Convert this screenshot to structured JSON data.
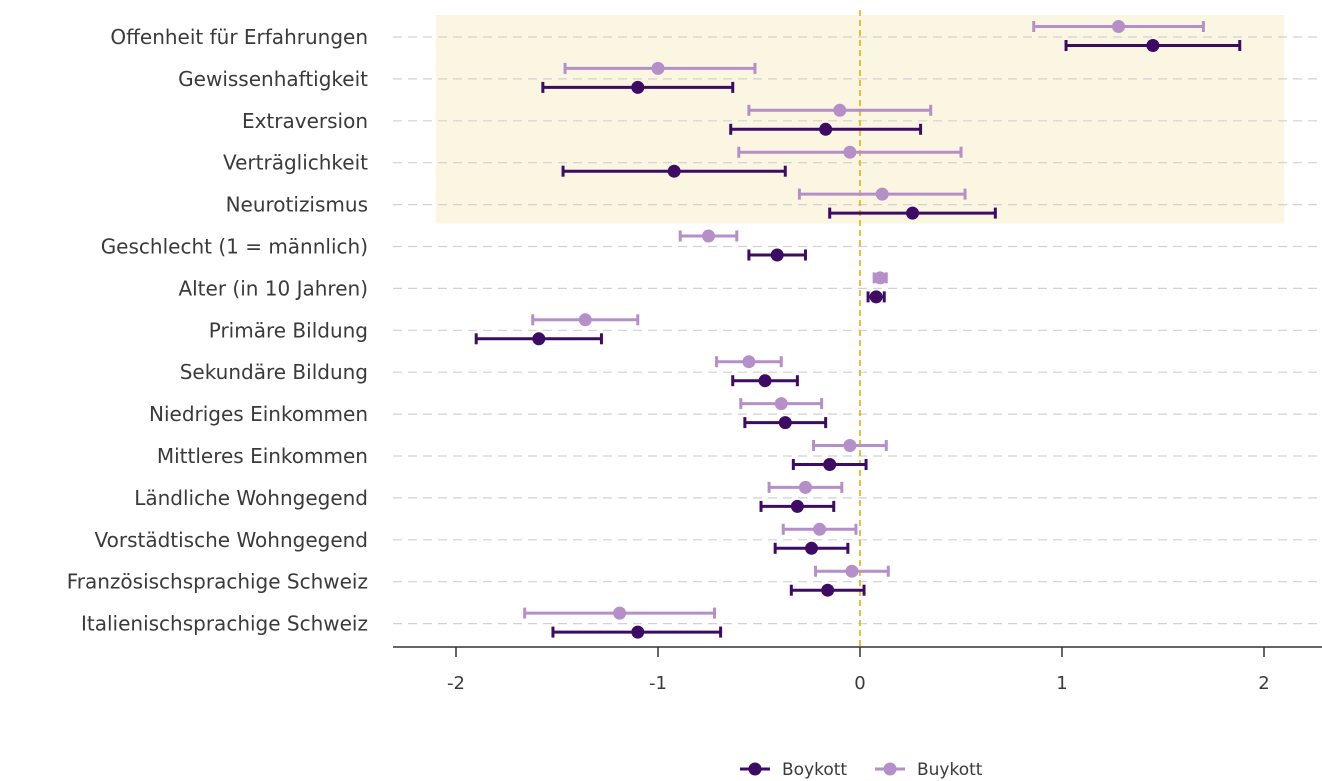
{
  "chart_data": {
    "type": "scatter",
    "subtype": "forest-plot-with-confidence-intervals",
    "title": "",
    "xlabel": "",
    "ylabel": "",
    "xlim": [
      -2.3,
      2.28
    ],
    "xticks": [
      -2,
      -1,
      0,
      1,
      2
    ],
    "xtick_labels": [
      "-2",
      "-1",
      "0",
      "1",
      "2"
    ],
    "reference_line": {
      "x": 0,
      "color": "#e8b923",
      "style": "dashed"
    },
    "highlight_region": {
      "x_from": -2.1,
      "x_to": 2.1,
      "categories_from": "Offenheit für Erfahrungen",
      "categories_to": "Neurotizismus",
      "color": "#faf6e2"
    },
    "grid": {
      "horizontal": true,
      "style": "dashed",
      "color": "#d2d2d2"
    },
    "legend": {
      "position": "bottom"
    },
    "categories": [
      "Offenheit für Erfahrungen",
      "Gewissenhaftigkeit",
      "Extraversion",
      "Verträglichkeit",
      "Neurotizismus",
      "Geschlecht (1 = männlich)",
      "Alter (in 10 Jahren)",
      "Primäre Bildung",
      "Sekundäre Bildung",
      "Niedriges Einkommen",
      "Mittleres Einkommen",
      "Ländliche Wohngegend",
      "Vorstädtische Wohngegend",
      "Französischsprachige Schweiz",
      "Italienischsprachige Schweiz"
    ],
    "series": [
      {
        "name": "Boykott",
        "color": "#3d0b63",
        "estimates": [
          1.45,
          -1.1,
          -0.17,
          -0.92,
          0.26,
          -0.41,
          0.08,
          -1.59,
          -0.47,
          -0.37,
          -0.15,
          -0.31,
          -0.24,
          -0.16,
          -1.1
        ],
        "lower": [
          1.02,
          -1.57,
          -0.64,
          -1.47,
          -0.15,
          -0.55,
          0.04,
          -1.9,
          -0.63,
          -0.57,
          -0.33,
          -0.49,
          -0.42,
          -0.34,
          -1.52
        ],
        "upper": [
          1.88,
          -0.63,
          0.3,
          -0.37,
          0.67,
          -0.27,
          0.12,
          -1.28,
          -0.31,
          -0.17,
          0.03,
          -0.13,
          -0.06,
          0.02,
          -0.69
        ]
      },
      {
        "name": "Buykott",
        "color": "#b48fc8",
        "estimates": [
          1.28,
          -1.0,
          -0.1,
          -0.05,
          0.11,
          -0.75,
          0.1,
          -1.36,
          -0.55,
          -0.39,
          -0.05,
          -0.27,
          -0.2,
          -0.04,
          -1.19
        ],
        "lower": [
          0.86,
          -1.46,
          -0.55,
          -0.6,
          -0.3,
          -0.89,
          0.07,
          -1.62,
          -0.71,
          -0.59,
          -0.23,
          -0.45,
          -0.38,
          -0.22,
          -1.66
        ],
        "upper": [
          1.7,
          -0.52,
          0.35,
          0.5,
          0.52,
          -0.61,
          0.13,
          -1.1,
          -0.39,
          -0.19,
          0.13,
          -0.09,
          -0.02,
          0.14,
          -0.72
        ]
      }
    ]
  }
}
